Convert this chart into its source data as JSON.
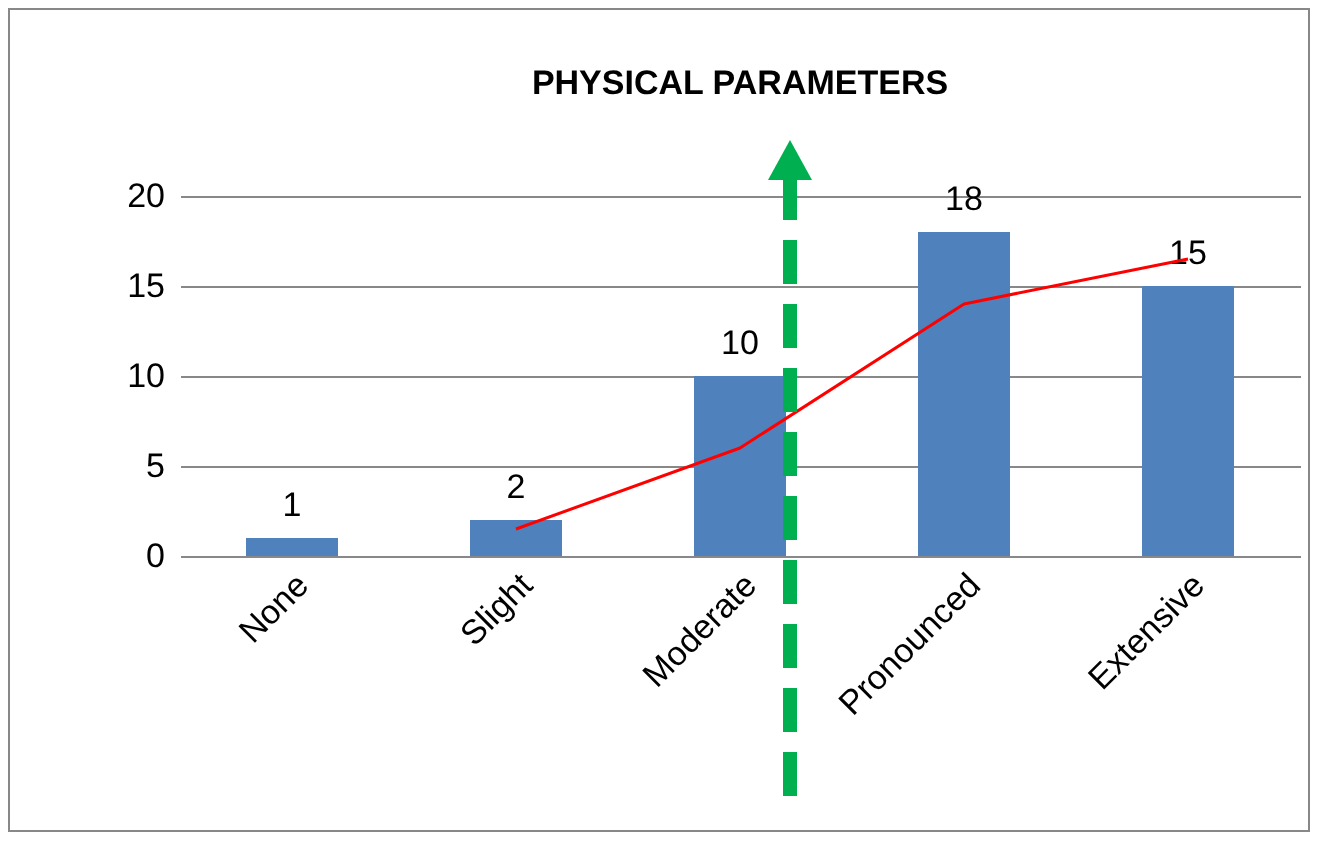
{
  "chart_data": {
    "type": "bar",
    "title": "PHYSICAL PARAMETERS",
    "categories": [
      "None",
      "Slight",
      "Moderate",
      "Pronounced",
      "Extensive"
    ],
    "series": [
      {
        "color": "#4f81bd",
        "values": [
          1,
          2,
          10,
          18,
          15
        ],
        "value_labels": [
          "1",
          "2",
          "10",
          "18",
          "15"
        ]
      },
      {
        "type": "line",
        "color": "#ff0000",
        "values": [
          null,
          1.5,
          6,
          14,
          16.5
        ]
      }
    ],
    "ylim": [
      0,
      20
    ],
    "yticks": [
      0,
      5,
      10,
      15,
      20
    ],
    "grid": "y"
  }
}
